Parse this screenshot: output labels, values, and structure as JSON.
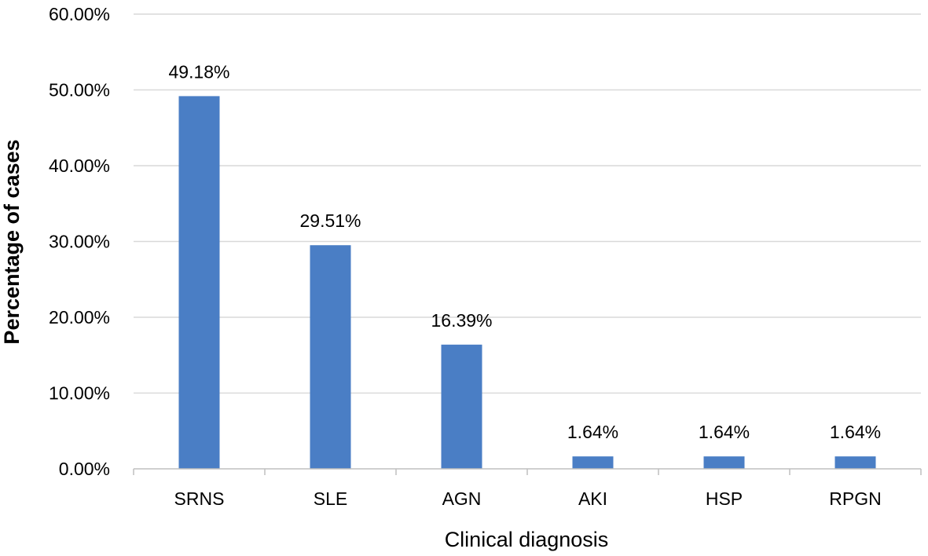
{
  "chart_data": {
    "type": "bar",
    "title": "",
    "xlabel": "Clinical diagnosis",
    "ylabel": "Percentage of cases",
    "categories": [
      "SRNS",
      "SLE",
      "AGN",
      "AKI",
      "HSP",
      "RPGN"
    ],
    "values": [
      49.18,
      29.51,
      16.39,
      1.64,
      1.64,
      1.64
    ],
    "data_labels": [
      "49.18%",
      "29.51%",
      "16.39%",
      "1.64%",
      "1.64%",
      "1.64%"
    ],
    "ylim": [
      0,
      60
    ],
    "yticks": [
      0,
      10,
      20,
      30,
      40,
      50,
      60
    ],
    "ytick_labels": [
      "0.00%",
      "10.00%",
      "20.00%",
      "30.00%",
      "40.00%",
      "50.00%",
      "60.00%"
    ],
    "grid": "horizontal",
    "legend": "none",
    "colors": {
      "bar": "#4a7ec5",
      "grid": "#d9d9d9",
      "axis": "#bfbfbf",
      "text": "#000000"
    }
  }
}
